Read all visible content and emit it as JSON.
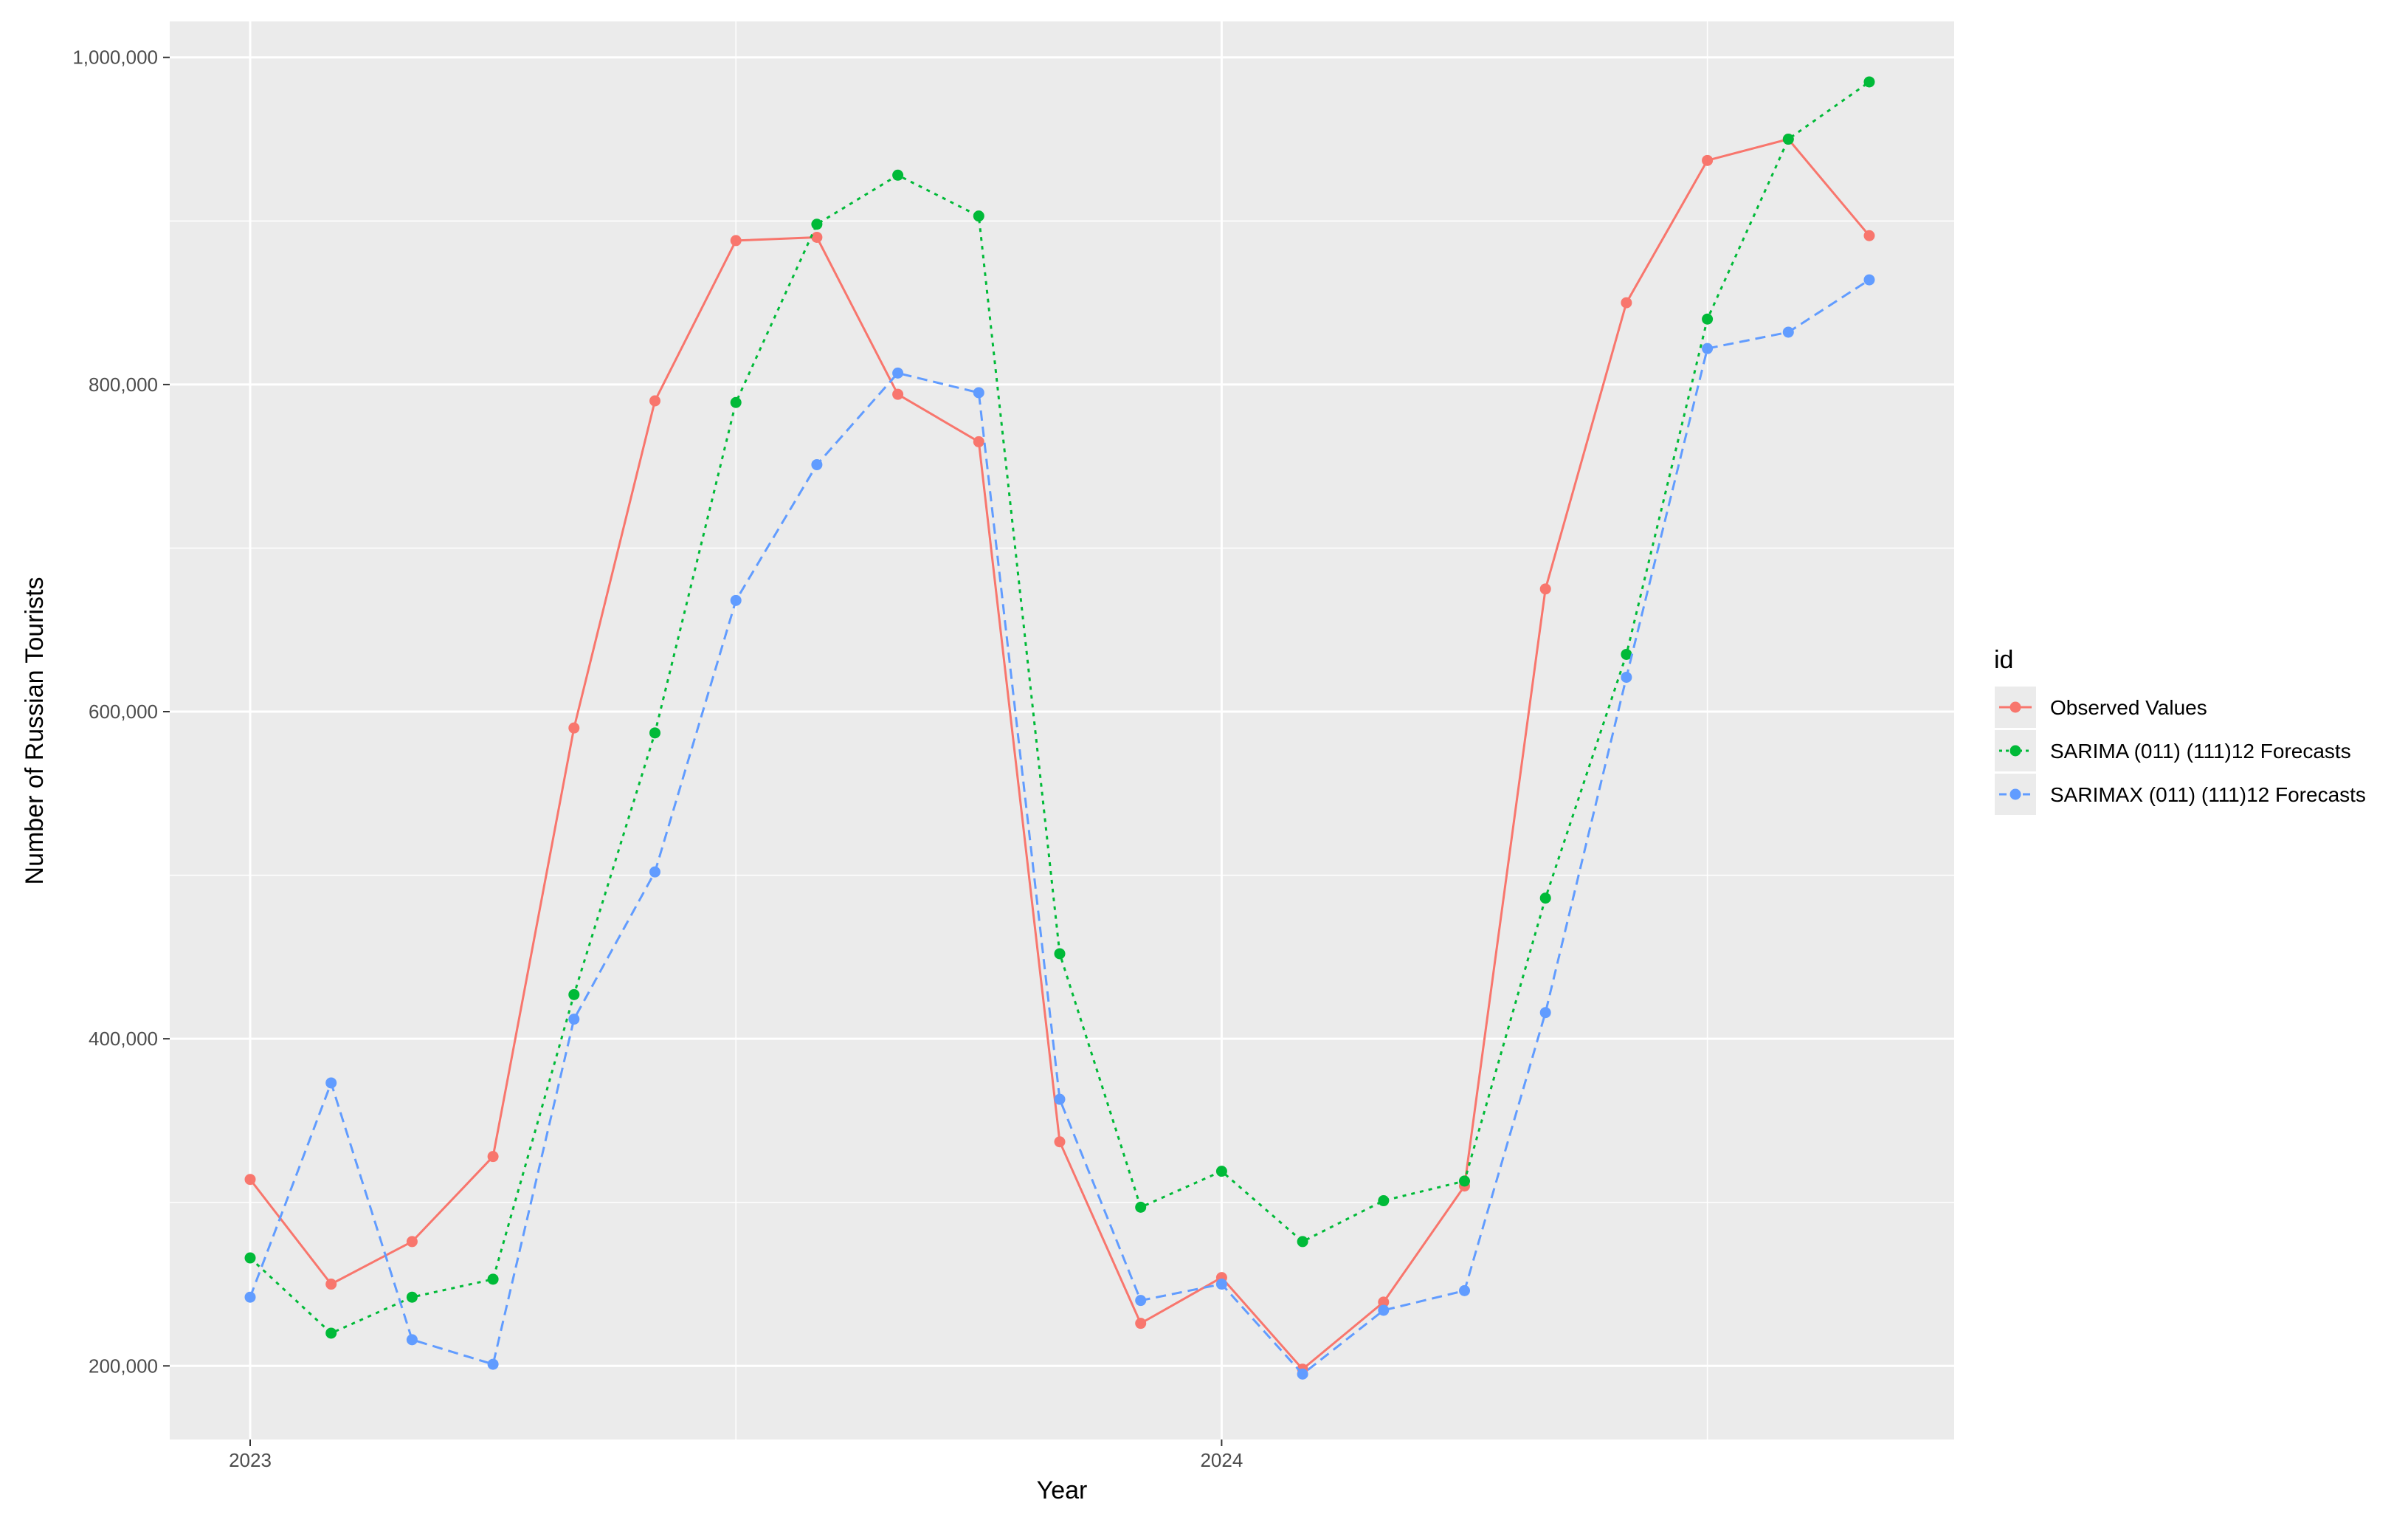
{
  "chart_data": {
    "type": "line",
    "xlabel": "Year",
    "ylabel": "Number of Russian Tourists",
    "x_ticks": [
      "2023",
      "2024"
    ],
    "y_ticks": [
      "200,000",
      "400,000",
      "600,000",
      "800,000",
      "1,000,000"
    ],
    "ylim": [
      155000,
      1022000
    ],
    "x": [
      "2023-01",
      "2023-02",
      "2023-03",
      "2023-04",
      "2023-05",
      "2023-06",
      "2023-07",
      "2023-08",
      "2023-09",
      "2023-10",
      "2023-11",
      "2023-12",
      "2024-01",
      "2024-02",
      "2024-03",
      "2024-04",
      "2024-05",
      "2024-06",
      "2024-07",
      "2024-08",
      "2024-09"
    ],
    "grid": true,
    "legend_title": "id",
    "legend_position": "right",
    "background": "#ebebeb",
    "series": [
      {
        "name": "Observed Values",
        "color": "#f8766d",
        "linestyle": "solid",
        "values": [
          314000,
          250000,
          276000,
          328000,
          590000,
          790000,
          888000,
          890000,
          794000,
          765000,
          337000,
          226000,
          254000,
          198000,
          239000,
          310000,
          675000,
          850000,
          937000,
          950000,
          891000
        ]
      },
      {
        "name": "SARIMA (011) (111)12 Forecasts",
        "color": "#00ba38",
        "linestyle": "dotted",
        "values": [
          266000,
          220000,
          242000,
          253000,
          427000,
          587000,
          789000,
          898000,
          928000,
          903000,
          452000,
          297000,
          319000,
          276000,
          301000,
          313000,
          486000,
          635000,
          840000,
          950000,
          985000
        ]
      },
      {
        "name": "SARIMAX (011) (111)12 Forecasts",
        "color": "#619cff",
        "linestyle": "dashed",
        "values": [
          242000,
          373000,
          216000,
          201000,
          412000,
          502000,
          668000,
          751000,
          807000,
          795000,
          363000,
          240000,
          250000,
          195000,
          234000,
          246000,
          416000,
          621000,
          822000,
          832000,
          864000
        ]
      }
    ]
  }
}
